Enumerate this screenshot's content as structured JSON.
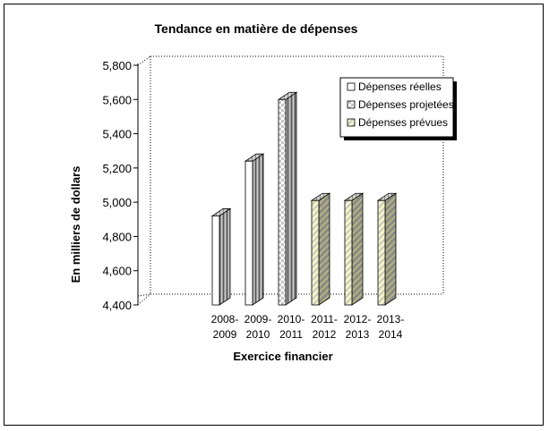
{
  "chart_data": {
    "type": "bar",
    "title": "Tendance en matière de dépenses",
    "xlabel": "Exercice financier",
    "ylabel": "En milliers de dollars",
    "ylim": [
      4400,
      5800
    ],
    "yticks": [
      {
        "value": 4400,
        "label": "4,400"
      },
      {
        "value": 4600,
        "label": "4,600"
      },
      {
        "value": 4800,
        "label": "4,800"
      },
      {
        "value": 5000,
        "label": "5,000"
      },
      {
        "value": 5200,
        "label": "5,200"
      },
      {
        "value": 5400,
        "label": "5,400"
      },
      {
        "value": 5600,
        "label": "5,600"
      },
      {
        "value": 5800,
        "label": "5,800"
      }
    ],
    "categories": [
      {
        "line1": "2008-",
        "line2": "2009"
      },
      {
        "line1": "2009-",
        "line2": "2010"
      },
      {
        "line1": "2010-",
        "line2": "2011"
      },
      {
        "line1": "2011-",
        "line2": "2012"
      },
      {
        "line1": "2012-",
        "line2": "2013"
      },
      {
        "line1": "2013-",
        "line2": "2014"
      }
    ],
    "series": [
      {
        "name": "Dépenses réelles",
        "pattern": "white",
        "values": [
          4920,
          5240,
          null,
          null,
          null,
          null
        ]
      },
      {
        "name": "Dépenses projetées",
        "pattern": "checker",
        "values": [
          null,
          null,
          5600,
          null,
          null,
          null
        ]
      },
      {
        "name": "Dépenses prévues",
        "pattern": "yellow-diag",
        "values": [
          null,
          null,
          null,
          5010,
          5010,
          5010
        ]
      }
    ],
    "legend_position": "top-right",
    "grid": false,
    "colors": {
      "side": "#8a8a8a",
      "yellow": "#f2f0a0",
      "checker": "#c8c8c8"
    }
  }
}
